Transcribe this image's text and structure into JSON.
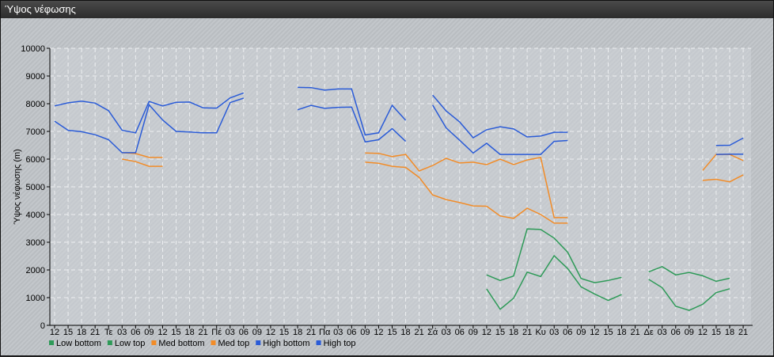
{
  "window": {
    "title": "Ύψος νέφωσης"
  },
  "chart_data": {
    "type": "line",
    "title": "",
    "xlabel": "",
    "ylabel": "Ύψος νέφωσης (m)",
    "ylim": [
      0,
      10000
    ],
    "yticks": [
      0,
      1000,
      2000,
      3000,
      4000,
      5000,
      6000,
      7000,
      8000,
      9000,
      10000
    ],
    "grid": true,
    "legend_position": "bottom-left",
    "x": [
      "12",
      "15",
      "18",
      "21",
      "Τε",
      "03",
      "06",
      "09",
      "12",
      "15",
      "18",
      "21",
      "Πέ",
      "03",
      "06",
      "09",
      "12",
      "15",
      "18",
      "21",
      "Πα",
      "03",
      "06",
      "09",
      "12",
      "15",
      "18",
      "21",
      "Σά",
      "03",
      "06",
      "09",
      "12",
      "15",
      "18",
      "21",
      "Κυ",
      "03",
      "06",
      "09",
      "12",
      "15",
      "18",
      "21",
      "Δε",
      "03",
      "06",
      "09",
      "12",
      "15",
      "18",
      "21"
    ],
    "series": [
      {
        "name": "Low bottom",
        "color": "#2e9a58",
        "values": [
          null,
          null,
          null,
          null,
          null,
          null,
          null,
          null,
          null,
          null,
          null,
          null,
          null,
          null,
          null,
          null,
          null,
          null,
          null,
          null,
          null,
          null,
          null,
          null,
          null,
          null,
          null,
          null,
          null,
          null,
          null,
          null,
          1310,
          580,
          980,
          1920,
          1760,
          2510,
          2050,
          1390,
          1130,
          900,
          1110,
          null,
          1660,
          1360,
          690,
          540,
          760,
          1180,
          1320,
          null
        ]
      },
      {
        "name": "Low top",
        "color": "#2e9a58",
        "values": [
          null,
          null,
          null,
          null,
          null,
          null,
          null,
          null,
          null,
          null,
          null,
          null,
          null,
          null,
          null,
          null,
          null,
          null,
          null,
          null,
          null,
          null,
          null,
          null,
          null,
          null,
          null,
          null,
          null,
          null,
          null,
          null,
          1820,
          1620,
          1780,
          3480,
          3460,
          3150,
          2640,
          1690,
          1540,
          1620,
          1730,
          null,
          1930,
          2120,
          1820,
          1910,
          1790,
          1590,
          1700,
          null
        ]
      },
      {
        "name": "Med bottom",
        "color": "#f28c28",
        "values": [
          null,
          null,
          null,
          null,
          null,
          6000,
          5910,
          5740,
          5740,
          null,
          null,
          null,
          null,
          null,
          null,
          null,
          null,
          null,
          null,
          null,
          null,
          null,
          null,
          5890,
          5850,
          5740,
          5700,
          5340,
          4710,
          4540,
          4430,
          4310,
          4300,
          3950,
          3860,
          4230,
          4000,
          3690,
          3690,
          null,
          null,
          null,
          null,
          null,
          null,
          null,
          null,
          null,
          5230,
          5270,
          5180,
          5430
        ]
      },
      {
        "name": "Med top",
        "color": "#f28c28",
        "values": [
          null,
          null,
          null,
          null,
          null,
          6230,
          6200,
          6060,
          6060,
          null,
          null,
          null,
          null,
          null,
          null,
          null,
          null,
          null,
          null,
          null,
          null,
          null,
          null,
          6220,
          6210,
          6090,
          6170,
          5570,
          5770,
          6030,
          5860,
          5890,
          5800,
          6000,
          5800,
          5970,
          6060,
          3890,
          3890,
          null,
          null,
          null,
          null,
          null,
          null,
          null,
          null,
          null,
          5590,
          6170,
          6170,
          5950
        ]
      },
      {
        "name": "High bottom",
        "color": "#2a5bd7",
        "values": [
          7370,
          7040,
          6990,
          6880,
          6700,
          6230,
          6230,
          7960,
          7410,
          7000,
          6980,
          6950,
          6950,
          8040,
          8200,
          null,
          null,
          null,
          7780,
          7940,
          7830,
          7870,
          7880,
          6620,
          6700,
          7100,
          6640,
          null,
          7950,
          7130,
          6680,
          6220,
          6570,
          6170,
          6170,
          6170,
          6170,
          6640,
          6670,
          null,
          null,
          null,
          null,
          null,
          null,
          null,
          null,
          null,
          null,
          6170,
          6180,
          6180
        ]
      },
      {
        "name": "High top",
        "color": "#2a5bd7",
        "values": [
          7920,
          8030,
          8090,
          8020,
          7750,
          7040,
          6950,
          8080,
          7920,
          8050,
          8060,
          7850,
          7840,
          8210,
          8390,
          null,
          null,
          null,
          8590,
          8580,
          8490,
          8530,
          8530,
          6870,
          6950,
          7940,
          7400,
          null,
          8310,
          7740,
          7340,
          6770,
          7060,
          7170,
          7090,
          6800,
          6830,
          6970,
          6970,
          null,
          null,
          null,
          null,
          null,
          null,
          null,
          null,
          null,
          null,
          6490,
          6500,
          6760
        ]
      }
    ]
  }
}
